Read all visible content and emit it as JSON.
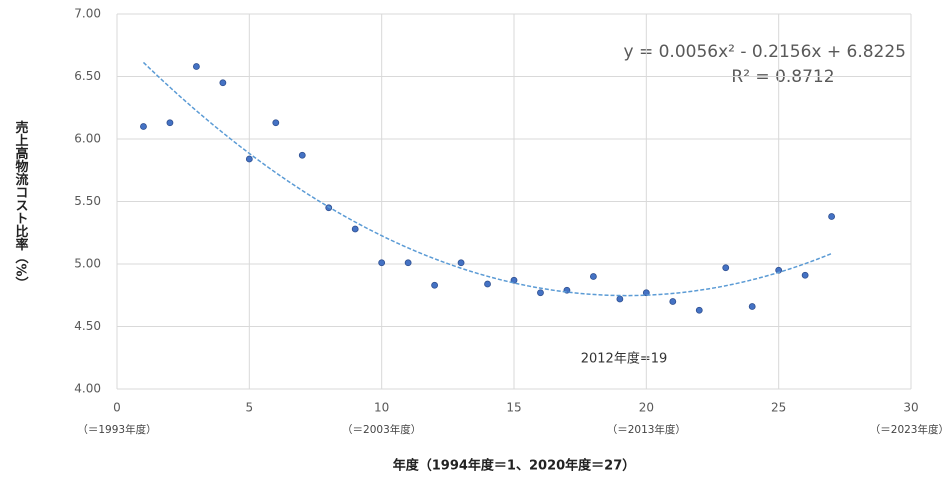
{
  "chart_data": {
    "type": "scatter",
    "y_label": "売上高物流コスト比率（%）",
    "x_label": "年度（1994年度＝1、2020年度＝27）",
    "annotation": "2012年度=19",
    "x_sublabels": [
      "（＝1993年度）",
      null,
      "（＝2003年度）",
      null,
      "（＝2013年度）",
      null,
      "（＝2023年度）"
    ],
    "series": [
      {
        "color": "#4472c4",
        "x": [
          1,
          2,
          3,
          4,
          5,
          6,
          7,
          8,
          9,
          10,
          11,
          12,
          13,
          14,
          15,
          16,
          17,
          18,
          19,
          20,
          21,
          22,
          23,
          24,
          25,
          26,
          27
        ],
        "values": [
          6.1,
          6.13,
          6.58,
          6.45,
          5.84,
          6.13,
          5.87,
          5.45,
          5.28,
          5.01,
          5.01,
          4.83,
          5.01,
          4.84,
          4.87,
          4.77,
          4.79,
          4.9,
          4.72,
          4.77,
          4.7,
          4.63,
          4.97,
          4.66,
          4.95,
          4.91,
          5.38
        ]
      }
    ],
    "trendline": {
      "type": "polynomial",
      "color": "#5b9bd5",
      "coefficients": [
        0.0056,
        -0.2156,
        6.8225
      ],
      "equation": "y = 0.0056x² - 0.2156x + 6.8225",
      "r_squared": "R² = 0.8712"
    },
    "xlim": [
      0,
      30
    ],
    "xticks": [
      0,
      5,
      10,
      15,
      20,
      25,
      30
    ],
    "ylim": [
      4,
      7
    ],
    "yticks": [
      {
        "value": 4,
        "label": "4.00"
      },
      {
        "value": 4.5,
        "label": "4.50"
      },
      {
        "value": 5,
        "label": "5.00"
      },
      {
        "value": 5.5,
        "label": "5.50"
      },
      {
        "value": 6,
        "label": "6.00"
      },
      {
        "value": 6.5,
        "label": "6.50"
      },
      {
        "value": 7,
        "label": "7.00"
      }
    ],
    "grid": true
  }
}
